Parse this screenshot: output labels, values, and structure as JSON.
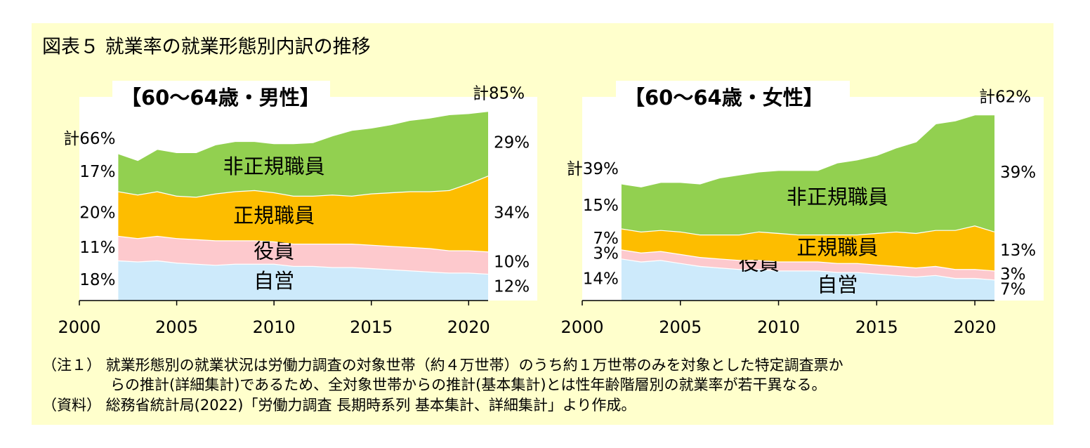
{
  "title": "図表５ 就業率の就業形態別内訳の推移",
  "chart_data": [
    {
      "type": "stacked-area",
      "subtitle": "【60～64歳・男性】",
      "x": [
        2002,
        2003,
        2004,
        2005,
        2006,
        2007,
        2008,
        2009,
        2010,
        2011,
        2012,
        2013,
        2014,
        2015,
        2016,
        2017,
        2018,
        2019,
        2020,
        2021
      ],
      "xlim": [
        2000,
        2021
      ],
      "xticks": [
        2000,
        2005,
        2010,
        2015,
        2020
      ],
      "ylim": [
        0,
        85
      ],
      "total_start_label": "計66%",
      "total_end_label": "計85%",
      "series": [
        {
          "name": "自営",
          "color": "#cdeafb",
          "start_label": "18%",
          "end_label": "12%",
          "values": [
            18,
            17.5,
            18,
            17,
            16.5,
            16,
            16.5,
            16.5,
            16.5,
            15.5,
            15.5,
            15,
            15,
            14.5,
            14,
            13.5,
            13,
            12.5,
            12.5,
            12
          ]
        },
        {
          "name": "役員",
          "color": "#fdc9cd",
          "start_label": "11%",
          "end_label": "10%",
          "values": [
            11,
            10.5,
            11,
            11,
            11,
            11,
            10.5,
            10.5,
            10,
            10,
            10,
            10.5,
            10.5,
            10.5,
            10.5,
            10.5,
            10.5,
            10,
            10,
            10
          ]
        },
        {
          "name": "正規職員",
          "color": "#fdbd00",
          "start_label": "20%",
          "end_label": "34%",
          "values": [
            20,
            19.5,
            20,
            19,
            19,
            21,
            22,
            22.5,
            22,
            21.5,
            21.5,
            22,
            21.5,
            23,
            24,
            25,
            25.5,
            27,
            30,
            34
          ]
        },
        {
          "name": "非正規職員",
          "color": "#92d050",
          "start_label": "17%",
          "end_label": "29%",
          "values": [
            17,
            15.5,
            19,
            19.5,
            20,
            22,
            22.5,
            22,
            22,
            23.5,
            24,
            26.5,
            29.5,
            29.5,
            30.5,
            32,
            33,
            34,
            31.5,
            29
          ]
        }
      ]
    },
    {
      "type": "stacked-area",
      "subtitle": "【60～64歳・女性】",
      "x": [
        2002,
        2003,
        2004,
        2005,
        2006,
        2007,
        2008,
        2009,
        2010,
        2011,
        2012,
        2013,
        2014,
        2015,
        2016,
        2017,
        2018,
        2019,
        2020,
        2021
      ],
      "xlim": [
        2000,
        2021
      ],
      "xticks": [
        2000,
        2005,
        2010,
        2015,
        2020
      ],
      "ylim": [
        0,
        62
      ],
      "total_start_label": "計39%",
      "total_end_label": "計62%",
      "series": [
        {
          "name": "自営",
          "color": "#cdeafb",
          "start_label": "14%",
          "end_label": "7%",
          "values": [
            14,
            13,
            13.5,
            12.5,
            11.5,
            11,
            10.5,
            10.5,
            10,
            10,
            10,
            9.5,
            9.5,
            9,
            8.5,
            8,
            8.5,
            7.5,
            7.5,
            7
          ]
        },
        {
          "name": "役員",
          "color": "#fdc9cd",
          "start_label": "3%",
          "end_label": "3%",
          "values": [
            3,
            3,
            3,
            3,
            3,
            3,
            3,
            3,
            3,
            3,
            3,
            3,
            3,
            3,
            3,
            3,
            3,
            3,
            3,
            3
          ]
        },
        {
          "name": "正規職員",
          "color": "#fdbd00",
          "start_label": "7%",
          "end_label": "13%",
          "values": [
            7,
            7,
            7,
            7.5,
            7.5,
            8,
            8.5,
            9.5,
            9.5,
            9,
            9,
            9.5,
            9.5,
            10.5,
            11.5,
            11.5,
            12,
            13,
            14.5,
            13
          ]
        },
        {
          "name": "非正規職員",
          "color": "#92d050",
          "start_label": "15%",
          "end_label": "39%",
          "values": [
            15,
            15,
            16,
            16.5,
            17,
            19,
            20,
            20,
            21,
            21.5,
            21.5,
            24,
            25,
            26,
            28,
            30.5,
            35.5,
            36.5,
            37,
            39
          ]
        }
      ]
    }
  ],
  "notes": [
    "（注１） 就業形態別の就業状況は労働力調査の対象世帯（約４万世帯）のうち約１万世帯のみを対象とした特定調査票か",
    "らの推計(詳細集計)であるため、全対象世帯からの推計(基本集計)とは性年齢階層別の就業率が若干異なる。",
    "（資料） 総務省統計局(2022)「労働力調査 長期時系列 基本集計、詳細集計」より作成。"
  ]
}
